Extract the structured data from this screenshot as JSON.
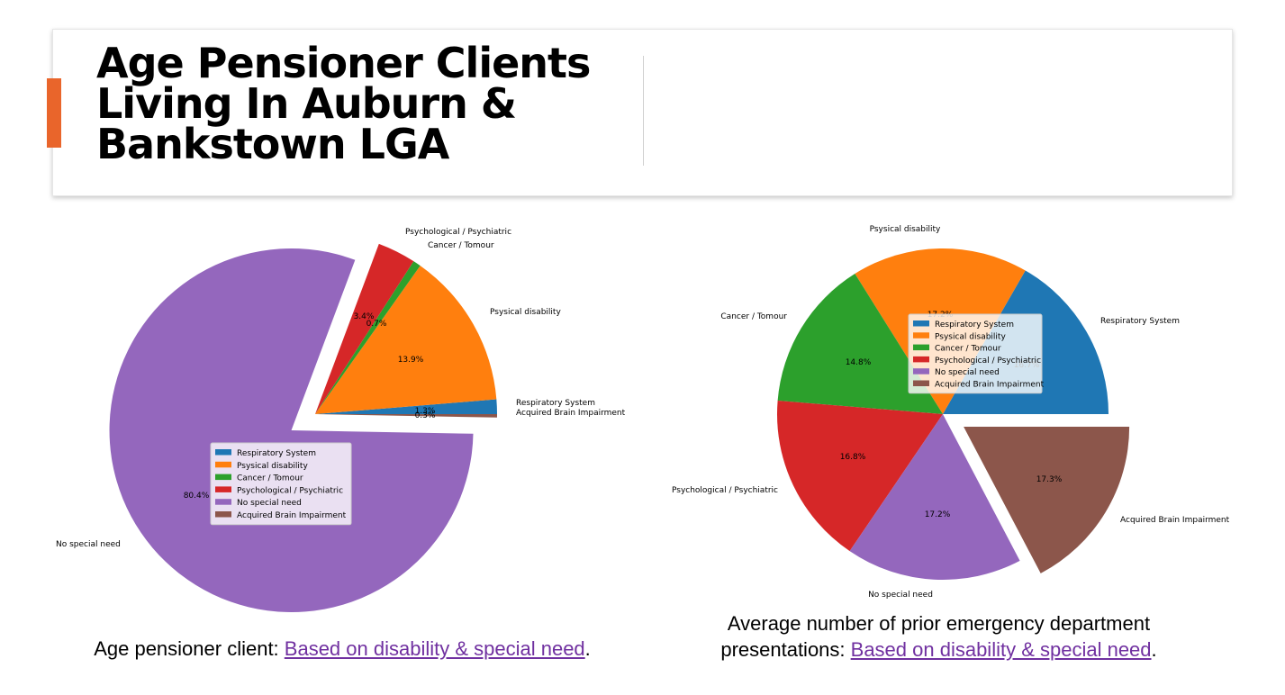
{
  "slide": {
    "title": "Age Pensioner Clients Living In Auburn & Bankstown LGA",
    "accent_color": "#E9652B"
  },
  "captions": {
    "left": {
      "prefix": "Age pensioner client: ",
      "link": "Based on disability & special need",
      "suffix": "."
    },
    "right": {
      "prefix": "Average number of prior emergency department presentations: ",
      "link": "Based on disability & special need",
      "suffix": "."
    },
    "link_color": "#7030A0"
  },
  "chart_data": [
    {
      "type": "pie",
      "title": "",
      "labels": [
        "Respiratory System",
        "Psysical disability",
        "Cancer / Tomour",
        "Psychological / Psychiatric",
        "No special need",
        "Acquired Brain Impairment"
      ],
      "values": [
        1.3,
        13.9,
        0.7,
        3.4,
        80.4,
        0.3
      ],
      "pct_labels": [
        "1.3%",
        "13.9%",
        "0.7%",
        "3.4%",
        "80.4%",
        "0.3%"
      ],
      "colors": [
        "#1f77b4",
        "#ff7f0e",
        "#2ca02c",
        "#d62728",
        "#9467bd",
        "#8c564b"
      ],
      "explode": [
        0,
        0,
        0,
        0,
        0.1,
        0
      ],
      "legend": {
        "placement": "center",
        "entries": [
          "Respiratory System",
          "Psysical disability",
          "Cancer / Tomour",
          "Psychological / Psychiatric",
          "No special need",
          "Acquired Brain Impairment"
        ]
      }
    },
    {
      "type": "pie",
      "title": "",
      "labels": [
        "Respiratory System",
        "Psysical disability",
        "Cancer / Tomour",
        "Psychological / Psychiatric",
        "No special need",
        "Acquired Brain Impairment"
      ],
      "values": [
        16.7,
        17.2,
        14.8,
        16.8,
        17.2,
        17.3
      ],
      "pct_labels": [
        "16.7%",
        "17.2%",
        "14.8%",
        "16.8%",
        "17.2%",
        "17.3%"
      ],
      "colors": [
        "#1f77b4",
        "#ff7f0e",
        "#2ca02c",
        "#d62728",
        "#9467bd",
        "#8c564b"
      ],
      "explode": [
        0,
        0,
        0,
        0,
        0,
        0.1
      ],
      "legend": {
        "placement": "upper-right",
        "entries": [
          "Respiratory System",
          "Psysical disability",
          "Cancer / Tomour",
          "Psychological / Psychiatric",
          "No special need",
          "Acquired Brain Impairment"
        ]
      }
    }
  ]
}
